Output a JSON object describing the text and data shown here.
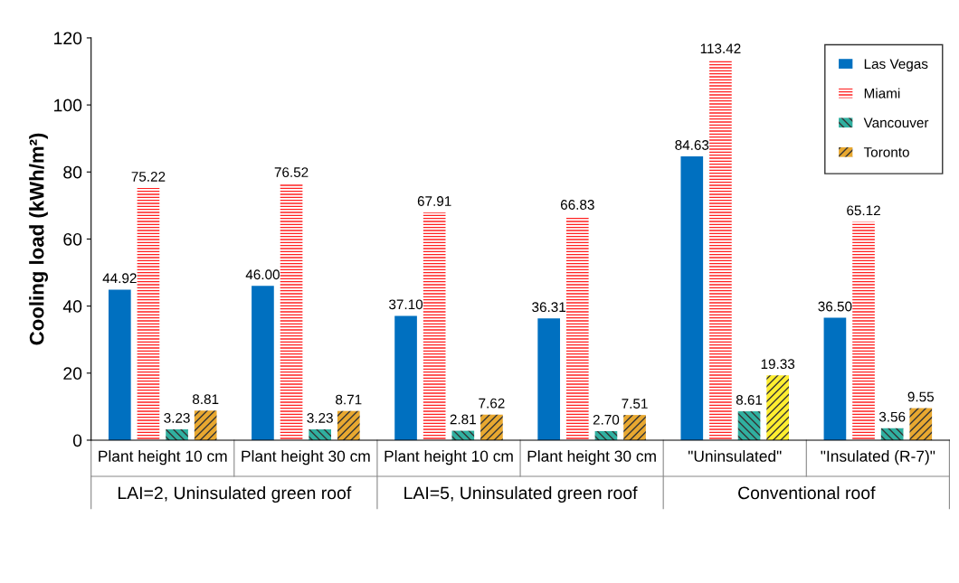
{
  "chart_data": {
    "type": "bar",
    "ylabel": "Cooling load (kWh/m²)",
    "categories": [
      "Plant height 10 cm",
      "Plant height 30 cm",
      "Plant height 10 cm",
      "Plant height 30 cm",
      "\"Uninsulated\"",
      "\"Insulated (R-7)\""
    ],
    "annotations": [
      "LAI=2, Uninsulated green roof",
      "LAI=5, Uninsulated green roof",
      "Conventional roof"
    ],
    "series": [
      {
        "name": "Las Vegas",
        "color": "#0070c0",
        "values": [
          44.92,
          46.0,
          37.1,
          36.31,
          84.63,
          36.5
        ],
        "value_labels": [
          "44.92",
          "46.00",
          "37.10",
          "36.31",
          "84.63",
          "36.50"
        ]
      },
      {
        "name": "Miami",
        "color": "#ff2020",
        "values": [
          75.22,
          76.52,
          67.91,
          66.83,
          113.42,
          65.12
        ],
        "value_labels": [
          "75.22",
          "76.52",
          "67.91",
          "66.83",
          "113.42",
          "65.12"
        ]
      },
      {
        "name": "Vancouver",
        "color": "#30b0a0",
        "values": [
          3.23,
          3.23,
          2.81,
          2.7,
          8.61,
          3.56
        ],
        "value_labels": [
          "3.23",
          "3.23",
          "2.81",
          "2.70",
          "8.61",
          "3.56"
        ]
      },
      {
        "name": "Toronto",
        "color": "#e8a830",
        "colors": [
          "#e8a830",
          "#e8a830",
          "#e8a830",
          "#e8a830",
          "#ffee30",
          "#e8a830"
        ],
        "values": [
          8.81,
          8.71,
          7.62,
          7.51,
          19.33,
          9.55
        ],
        "value_labels": [
          "8.81",
          "8.71",
          "7.62",
          "7.51",
          "19.33",
          "9.55"
        ]
      }
    ],
    "ylim": [
      0,
      120
    ],
    "yticks": [
      0,
      20,
      40,
      60,
      80,
      100,
      120
    ],
    "grid": false,
    "legend": "top right"
  }
}
